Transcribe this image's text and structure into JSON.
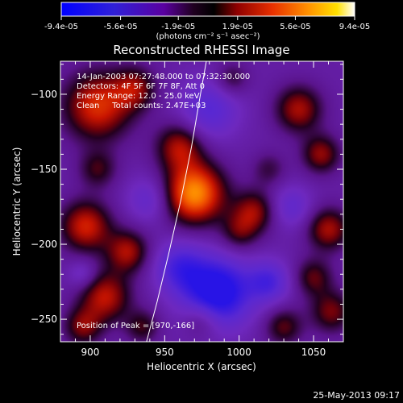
{
  "colorbar": {
    "tick_labels": [
      "-9.4e-05",
      "-5.6e-05",
      "-1.9e-05",
      "1.9e-05",
      "5.6e-05",
      "9.4e-05"
    ],
    "range": [
      -9.4e-05,
      9.4e-05
    ],
    "units_label": "(photons cm⁻² s⁻¹ asec⁻²)"
  },
  "chart_data": {
    "type": "heatmap",
    "title": "Reconstructed RHESSI Image",
    "xlabel": "Heliocentric X (arcsec)",
    "ylabel": "Heliocentric Y (arcsec)",
    "xlim": [
      880,
      1070
    ],
    "ylim": [
      -265,
      -78
    ],
    "x_ticks": [
      900,
      950,
      1000,
      1050
    ],
    "y_ticks": [
      -250,
      -200,
      -150,
      -100
    ],
    "x_tick_labels": [
      "900",
      "950",
      "1000",
      "1050"
    ],
    "y_tick_labels": [
      "−250",
      "−200",
      "−150",
      "−100"
    ],
    "colormap": "rhessi-flux: blue-purple (negative) to red-orange-yellow-white (positive)",
    "info_lines": [
      "14-Jan-2003 07:27:48.000 to 07:32:30.000",
      "Detectors: 4F 5F 6F 7F 8F, Att 0",
      "Energy Range: 12.0 - 25.0 keV",
      "Clean     Total counts: 2.47E+03"
    ],
    "peak_label": "Position of Peak = [970,-166]",
    "peak": {
      "x": 970,
      "y": -166
    },
    "blobs": [
      {
        "x": 970,
        "y": -166,
        "sigma": 14,
        "amp": 1.0
      },
      {
        "x": 960,
        "y": -135,
        "sigma": 11,
        "amp": 0.55
      },
      {
        "x": 905,
        "y": -108,
        "sigma": 16,
        "amp": 0.7
      },
      {
        "x": 930,
        "y": -96,
        "sigma": 10,
        "amp": 0.45
      },
      {
        "x": 905,
        "y": -150,
        "sigma": 9,
        "amp": 0.35
      },
      {
        "x": 897,
        "y": -188,
        "sigma": 12,
        "amp": 0.65
      },
      {
        "x": 925,
        "y": -205,
        "sigma": 10,
        "amp": 0.55
      },
      {
        "x": 910,
        "y": -235,
        "sigma": 12,
        "amp": 0.6
      },
      {
        "x": 895,
        "y": -255,
        "sigma": 9,
        "amp": 0.45
      },
      {
        "x": 1010,
        "y": -178,
        "sigma": 10,
        "amp": 0.5
      },
      {
        "x": 1000,
        "y": -192,
        "sigma": 9,
        "amp": 0.35
      },
      {
        "x": 1040,
        "y": -110,
        "sigma": 11,
        "amp": 0.55
      },
      {
        "x": 1055,
        "y": -140,
        "sigma": 9,
        "amp": 0.5
      },
      {
        "x": 1060,
        "y": -190,
        "sigma": 10,
        "amp": 0.55
      },
      {
        "x": 1050,
        "y": -222,
        "sigma": 9,
        "amp": 0.4
      },
      {
        "x": 1062,
        "y": -245,
        "sigma": 10,
        "amp": 0.45
      },
      {
        "x": 1030,
        "y": -255,
        "sigma": 9,
        "amp": 0.4
      },
      {
        "x": 995,
        "y": -90,
        "sigma": 8,
        "amp": 0.3
      },
      {
        "x": 1020,
        "y": -150,
        "sigma": 8,
        "amp": 0.25
      },
      {
        "x": 935,
        "y": -255,
        "sigma": 8,
        "amp": 0.35
      },
      {
        "x": 975,
        "y": -250,
        "sigma": 9,
        "amp": 0.3
      },
      {
        "x": 985,
        "y": -232,
        "sigma": 16,
        "amp": -0.85
      },
      {
        "x": 960,
        "y": -215,
        "sigma": 12,
        "amp": -0.45
      },
      {
        "x": 1020,
        "y": -225,
        "sigma": 10,
        "amp": -0.45
      },
      {
        "x": 980,
        "y": -110,
        "sigma": 14,
        "amp": -0.4
      },
      {
        "x": 940,
        "y": -170,
        "sigma": 11,
        "amp": -0.3
      },
      {
        "x": 1035,
        "y": -175,
        "sigma": 10,
        "amp": -0.3
      },
      {
        "x": 895,
        "y": -220,
        "sigma": 7,
        "amp": -0.25
      }
    ],
    "limb": {
      "points": [
        [
          937,
          -268
        ],
        [
          945,
          -238
        ],
        [
          953,
          -205
        ],
        [
          961,
          -170
        ],
        [
          968,
          -135
        ],
        [
          974,
          -100
        ],
        [
          978,
          -78
        ]
      ]
    }
  },
  "footer": {
    "date": "25-May-2013 09:17"
  }
}
